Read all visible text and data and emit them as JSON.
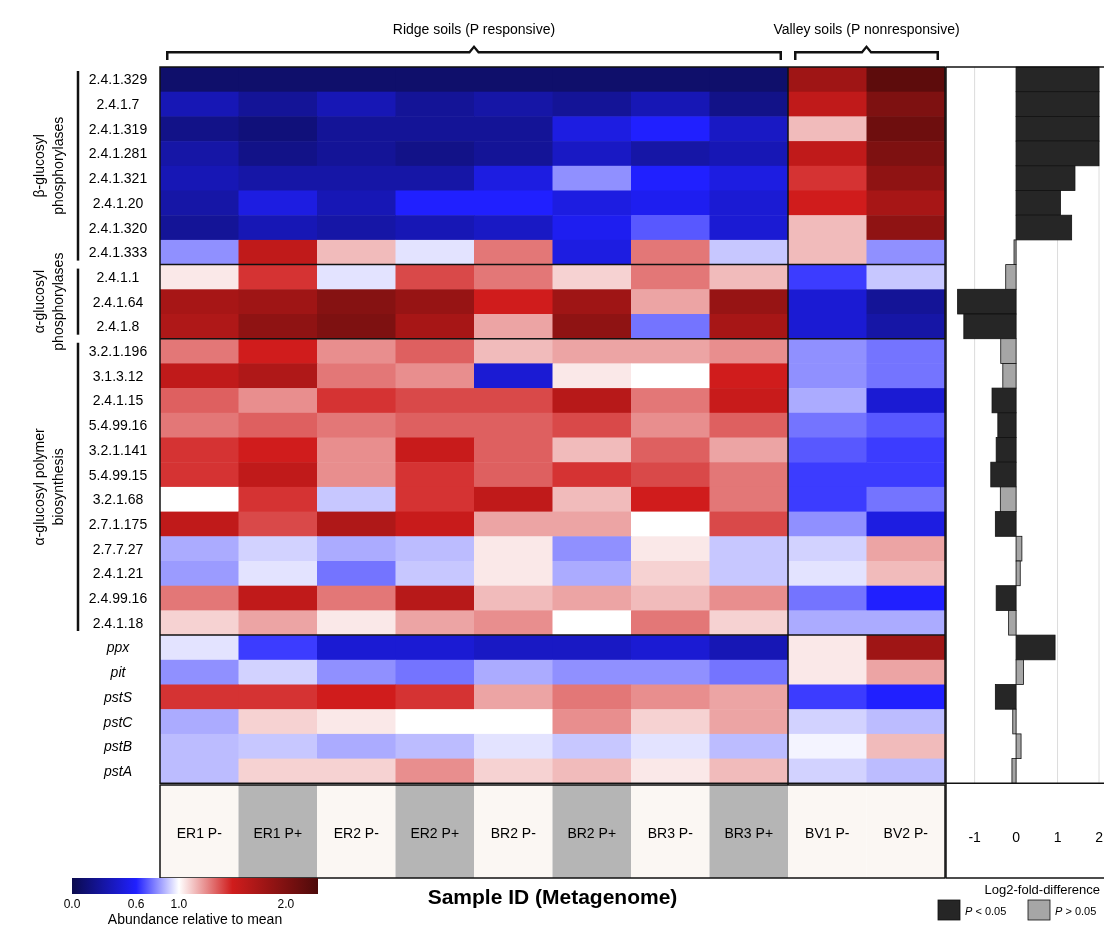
{
  "chart_data": [
    {
      "type": "heatmap",
      "xlabel": "Sample ID (Metagenome)",
      "clabel": "Abundance relative to mean",
      "categories": [
        "ER1 P-",
        "ER1 P+",
        "ER2 P-",
        "ER2 P+",
        "BR2 P-",
        "BR2 P+",
        "BR3 P-",
        "BR3 P+",
        "BV1 P-",
        "BV2 P-"
      ],
      "y_categories": [
        "2.4.1.329",
        "2.4.1.7",
        "2.4.1.319",
        "2.4.1.281",
        "2.4.1.321",
        "2.4.1.20",
        "2.4.1.320",
        "2.4.1.333",
        "2.4.1.1",
        "2.4.1.64",
        "2.4.1.8",
        "3.2.1.196",
        "3.1.3.12",
        "2.4.1.15",
        "5.4.99.16",
        "3.2.1.141",
        "5.4.99.15",
        "3.2.1.68",
        "2.7.1.175",
        "2.7.7.27",
        "2.4.1.21",
        "2.4.99.16",
        "2.4.1.18",
        "ppx",
        "pit",
        "pstS",
        "pstC",
        "pstB",
        "pstA"
      ],
      "cells": [
        [
          0.1,
          0.1,
          0.1,
          0.1,
          0.1,
          0.1,
          0.1,
          0.1,
          1.8,
          2.2
        ],
        [
          0.35,
          0.25,
          0.35,
          0.25,
          0.3,
          0.25,
          0.35,
          0.2,
          1.6,
          2.0
        ],
        [
          0.2,
          0.15,
          0.25,
          0.25,
          0.25,
          0.5,
          0.6,
          0.4,
          1.15,
          2.1
        ],
        [
          0.3,
          0.2,
          0.25,
          0.2,
          0.25,
          0.4,
          0.3,
          0.35,
          1.6,
          2.0
        ],
        [
          0.35,
          0.3,
          0.3,
          0.3,
          0.5,
          0.8,
          0.6,
          0.5,
          1.45,
          1.9
        ],
        [
          0.3,
          0.5,
          0.35,
          0.6,
          0.6,
          0.5,
          0.55,
          0.45,
          1.5,
          1.75
        ],
        [
          0.25,
          0.35,
          0.3,
          0.35,
          0.4,
          0.55,
          0.7,
          0.45,
          1.15,
          1.9
        ],
        [
          0.8,
          1.6,
          1.15,
          0.95,
          1.3,
          0.5,
          1.3,
          0.9,
          1.15,
          0.8
        ],
        [
          1.05,
          1.45,
          0.95,
          1.4,
          1.3,
          1.1,
          1.3,
          1.15,
          0.65,
          0.9
        ],
        [
          1.75,
          1.8,
          1.95,
          1.85,
          1.5,
          1.8,
          1.2,
          1.85,
          0.45,
          0.25
        ],
        [
          1.7,
          1.9,
          2.0,
          1.75,
          1.2,
          1.9,
          0.75,
          1.75,
          0.45,
          0.3
        ],
        [
          1.3,
          1.5,
          1.25,
          1.35,
          1.15,
          1.2,
          1.2,
          1.25,
          0.8,
          0.75
        ],
        [
          1.6,
          1.7,
          1.3,
          1.25,
          0.45,
          1.05,
          1.0,
          1.5,
          0.8,
          0.75
        ],
        [
          1.35,
          1.25,
          1.45,
          1.4,
          1.4,
          1.65,
          1.3,
          1.55,
          0.85,
          0.45
        ],
        [
          1.3,
          1.35,
          1.3,
          1.35,
          1.35,
          1.4,
          1.25,
          1.35,
          0.75,
          0.7
        ],
        [
          1.45,
          1.5,
          1.25,
          1.55,
          1.35,
          1.15,
          1.35,
          1.2,
          0.7,
          0.65
        ],
        [
          1.45,
          1.6,
          1.25,
          1.45,
          1.35,
          1.45,
          1.4,
          1.3,
          0.65,
          0.65
        ],
        [
          1.0,
          1.45,
          0.9,
          1.45,
          1.6,
          1.15,
          1.5,
          1.3,
          0.65,
          0.75
        ],
        [
          1.6,
          1.4,
          1.7,
          1.55,
          1.2,
          1.2,
          1.0,
          1.4,
          0.8,
          0.5
        ],
        [
          0.85,
          0.92,
          0.85,
          0.88,
          1.05,
          0.8,
          1.05,
          0.9,
          0.92,
          1.2
        ],
        [
          0.82,
          0.95,
          0.75,
          0.9,
          1.05,
          0.85,
          1.1,
          0.9,
          0.95,
          1.15
        ],
        [
          1.3,
          1.6,
          1.3,
          1.65,
          1.15,
          1.2,
          1.15,
          1.25,
          0.75,
          0.6
        ],
        [
          1.1,
          1.2,
          1.05,
          1.2,
          1.25,
          1.0,
          1.3,
          1.1,
          0.85,
          0.85
        ],
        [
          0.95,
          0.65,
          0.45,
          0.45,
          0.4,
          0.4,
          0.45,
          0.35,
          1.05,
          1.8
        ],
        [
          0.8,
          0.92,
          0.8,
          0.75,
          0.85,
          0.8,
          0.8,
          0.75,
          1.05,
          1.2
        ],
        [
          1.45,
          1.45,
          1.5,
          1.45,
          1.2,
          1.3,
          1.25,
          1.2,
          0.65,
          0.6
        ],
        [
          0.85,
          1.1,
          1.05,
          1.0,
          1.0,
          1.25,
          1.1,
          1.2,
          0.92,
          0.88
        ],
        [
          0.88,
          0.9,
          0.85,
          0.88,
          0.95,
          0.9,
          0.95,
          0.88,
          0.98,
          1.15
        ],
        [
          0.88,
          1.1,
          1.1,
          1.25,
          1.1,
          1.15,
          1.05,
          1.15,
          0.92,
          0.88
        ]
      ],
      "clim": [
        0,
        2.3
      ],
      "cticks": [
        {
          "value": 0,
          "label": "0.0"
        },
        0.6,
        {
          "value": 1,
          "label": "1.0"
        },
        {
          "value": 2,
          "label": "2.0"
        }
      ],
      "annotations": [
        "Ridge soils (P responsive)",
        "Valley soils (P nonresponsive)",
        "β-glucosyl phosphorylases",
        "α-glucosyl phosphorylases",
        "α-glucosyl polymer biosynthesis"
      ]
    },
    {
      "type": "bar",
      "orientation": "horizontal",
      "legend_title": "Log2-fold-difference",
      "legend": "bottom",
      "grid": "x",
      "tick_labels": "x",
      "categories": [
        null,
        null,
        null,
        null,
        null,
        null,
        null,
        null,
        null,
        null,
        null,
        null,
        null,
        null,
        null,
        null,
        null,
        null,
        null,
        null,
        null,
        null,
        null,
        null,
        null,
        null,
        null,
        null,
        null
      ],
      "xlim": [
        -1.69,
        2.12
      ],
      "xticks": [
        -1,
        0,
        1,
        2
      ],
      "series": [
        {
          "name": "P < 0.05",
          "color": "#262626",
          "values": [
            2.0,
            2.0,
            2.0,
            2.0,
            1.42,
            1.07,
            1.34,
            null,
            null,
            -1.41,
            -1.26,
            null,
            null,
            -0.58,
            -0.44,
            -0.48,
            -0.61,
            null,
            -0.5,
            null,
            null,
            -0.48,
            null,
            0.94,
            null,
            -0.5,
            null,
            null,
            null
          ]
        },
        {
          "name": "P > 0.05",
          "color": "#a6a6a6",
          "values": [
            null,
            null,
            null,
            null,
            null,
            null,
            null,
            -0.05,
            -0.25,
            null,
            null,
            -0.37,
            -0.32,
            null,
            null,
            null,
            null,
            -0.38,
            null,
            0.14,
            0.1,
            null,
            -0.18,
            null,
            0.18,
            null,
            -0.08,
            0.12,
            -0.1
          ]
        }
      ]
    }
  ]
}
